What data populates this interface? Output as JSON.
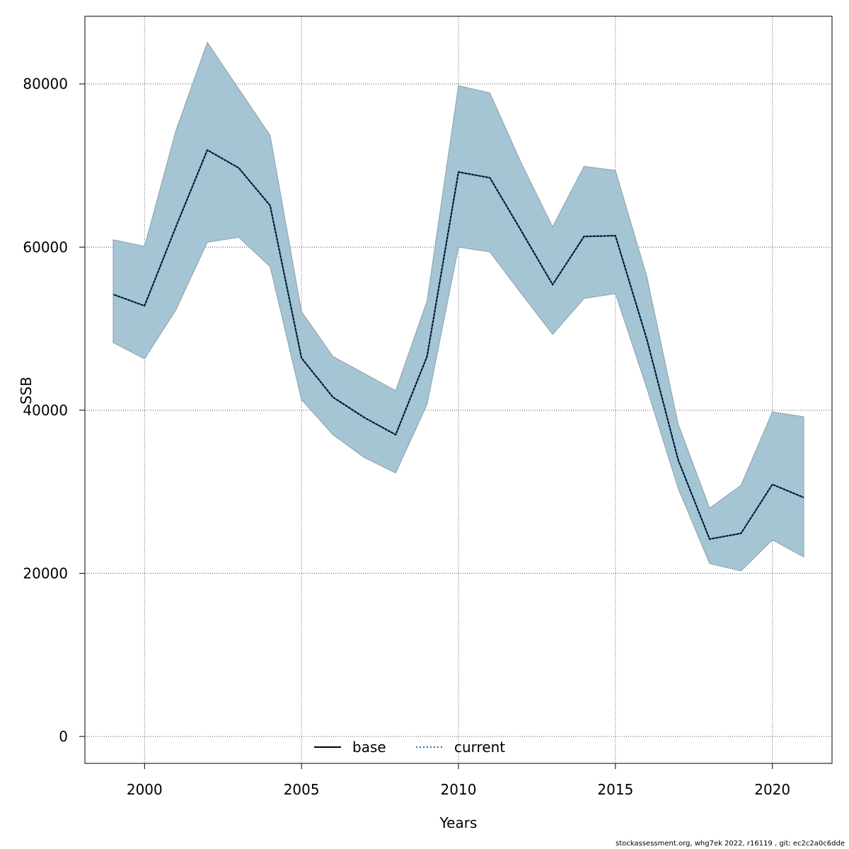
{
  "chart_data": {
    "type": "line",
    "title": "",
    "xlabel": "Years",
    "ylabel": "SSB",
    "xlim": [
      1998.1,
      2021.9
    ],
    "ylim": [
      -3300,
      88300
    ],
    "x_ticks": [
      2000,
      2005,
      2010,
      2015,
      2020
    ],
    "y_ticks": [
      0,
      20000,
      40000,
      60000,
      80000
    ],
    "x_tick_labels": [
      "2000",
      "2005",
      "2010",
      "2015",
      "2020"
    ],
    "y_tick_labels": [
      "0",
      "20000",
      "40000",
      "60000",
      "80000"
    ],
    "grid": true,
    "legend_position": "bottom-center",
    "x": [
      1999,
      2000,
      2001,
      2002,
      2003,
      2004,
      2005,
      2006,
      2007,
      2008,
      2009,
      2010,
      2011,
      2012,
      2013,
      2014,
      2015,
      2016,
      2017,
      2018,
      2019,
      2020,
      2021
    ],
    "band": {
      "upper": [
        60900,
        60100,
        74300,
        85100,
        79400,
        73700,
        52100,
        46600,
        44500,
        42400,
        53400,
        79800,
        78900,
        70300,
        62500,
        69900,
        69400,
        56400,
        38300,
        28000,
        30800,
        39800,
        39200
      ],
      "lower": [
        48300,
        46300,
        52300,
        60600,
        61200,
        57600,
        41300,
        37000,
        34200,
        32300,
        40700,
        60000,
        59400,
        54300,
        49300,
        53700,
        54300,
        42700,
        30400,
        21200,
        20300,
        24100,
        22000
      ],
      "color": "#a5c4d4",
      "edge_color": "#8aa0ab"
    },
    "series": [
      {
        "name": "base",
        "values": [
          54200,
          52800,
          62500,
          71900,
          69700,
          65100,
          46400,
          41600,
          39100,
          37000,
          46600,
          69200,
          68500,
          62000,
          55400,
          61300,
          61400,
          48700,
          33900,
          24200,
          24900,
          30900,
          29300
        ],
        "color": "#000000",
        "dash": "solid"
      },
      {
        "name": "current",
        "values": [
          54200,
          52800,
          62500,
          71900,
          69700,
          65100,
          46400,
          41600,
          39100,
          37000,
          46600,
          69200,
          68500,
          62000,
          55400,
          61300,
          61400,
          48700,
          33900,
          24200,
          24900,
          30900,
          29300
        ],
        "color": "#1f6fb5",
        "dash": "dotted"
      }
    ]
  },
  "credit_text": "stockassessment.org, whg7ek  2022, r16119 , git: ec2c2a0c6dde"
}
